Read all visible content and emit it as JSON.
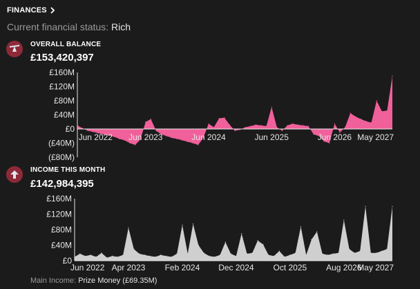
{
  "header": {
    "title": "FINANCES",
    "chevron_icon": "chevron-right-icon"
  },
  "status": {
    "label": "Current financial status:",
    "value": "Rich"
  },
  "balance": {
    "label": "OVERALL BALANCE",
    "value": "£153,420,397",
    "icon": "seesaw-balance-icon",
    "icon_bg": "#8e2a38"
  },
  "income": {
    "label": "INCOME THIS MONTH",
    "value": "£142,984,395",
    "icon": "arrow-up-icon",
    "icon_bg": "#8e2a38"
  },
  "footer": {
    "label": "Main Income:",
    "value": "Prize Money (£69.35M)"
  },
  "chart_data": [
    {
      "type": "area",
      "color": "#f0609a",
      "ylim": [
        -80,
        160
      ],
      "y_ticks": [
        160,
        120,
        80,
        40,
        0,
        -40,
        -80
      ],
      "y_tick_labels": [
        "£160M",
        "£120M",
        "£80M",
        "£40M",
        "£0",
        "(£40M)",
        "(£80M)"
      ],
      "x_tick_labels": [
        "Jun 2022",
        "Jun 2023",
        "Jun 2024",
        "Jun 2025",
        "Jun 2026",
        "May 2027"
      ],
      "x_tick_months": [
        1,
        13,
        25,
        37,
        49,
        60
      ],
      "x_months": [
        0,
        1,
        2,
        3,
        4,
        5,
        6,
        7,
        8,
        9,
        10,
        11,
        12,
        13,
        14,
        15,
        16,
        17,
        18,
        19,
        20,
        21,
        22,
        23,
        24,
        25,
        26,
        27,
        28,
        29,
        30,
        31,
        32,
        33,
        34,
        35,
        36,
        37,
        38,
        39,
        40,
        41,
        42,
        43,
        44,
        45,
        46,
        47,
        48,
        49,
        50,
        51,
        52,
        53,
        54,
        55,
        56,
        57,
        58,
        59,
        60
      ],
      "values": [
        10,
        2,
        -5,
        -8,
        -12,
        -15,
        -18,
        -22,
        -28,
        -32,
        -40,
        -45,
        -30,
        20,
        28,
        -5,
        -15,
        -20,
        -25,
        -28,
        -32,
        -36,
        -40,
        -45,
        -25,
        15,
        5,
        30,
        32,
        12,
        -5,
        -2,
        5,
        8,
        12,
        10,
        8,
        62,
        5,
        -5,
        10,
        15,
        12,
        10,
        8,
        -15,
        -20,
        -35,
        -40,
        15,
        -10,
        5,
        45,
        35,
        28,
        22,
        18,
        80,
        50,
        52,
        150
      ]
    },
    {
      "type": "area",
      "color": "#cfcfcf",
      "ylim": [
        0,
        160
      ],
      "y_ticks": [
        160,
        120,
        80,
        40,
        0
      ],
      "y_tick_labels": [
        "£160M",
        "£120M",
        "£80M",
        "£40M",
        "£0"
      ],
      "x_tick_labels": [
        "Jun 2022",
        "Apr 2023",
        "Feb 2024",
        "Dec 2024",
        "Oct 2025",
        "Aug 2026",
        "May 2027"
      ],
      "x_tick_months": [
        0,
        10,
        20,
        30,
        40,
        50,
        59
      ],
      "x_months": [
        0,
        1,
        2,
        3,
        4,
        5,
        6,
        7,
        8,
        9,
        10,
        11,
        12,
        13,
        14,
        15,
        16,
        17,
        18,
        19,
        20,
        21,
        22,
        23,
        24,
        25,
        26,
        27,
        28,
        29,
        30,
        31,
        32,
        33,
        34,
        35,
        36,
        37,
        38,
        39,
        40,
        41,
        42,
        43,
        44,
        45,
        46,
        47,
        48,
        49,
        50,
        51,
        52,
        53,
        54,
        55,
        56,
        57,
        58,
        59
      ],
      "values": [
        10,
        18,
        12,
        15,
        10,
        20,
        8,
        12,
        10,
        15,
        85,
        30,
        18,
        15,
        12,
        10,
        15,
        12,
        10,
        18,
        92,
        18,
        95,
        40,
        20,
        12,
        10,
        15,
        48,
        18,
        12,
        70,
        18,
        20,
        52,
        42,
        15,
        12,
        25,
        10,
        15,
        20,
        88,
        15,
        55,
        75,
        18,
        15,
        18,
        20,
        105,
        30,
        20,
        25,
        140,
        20,
        20,
        25,
        30,
        140
      ]
    }
  ]
}
